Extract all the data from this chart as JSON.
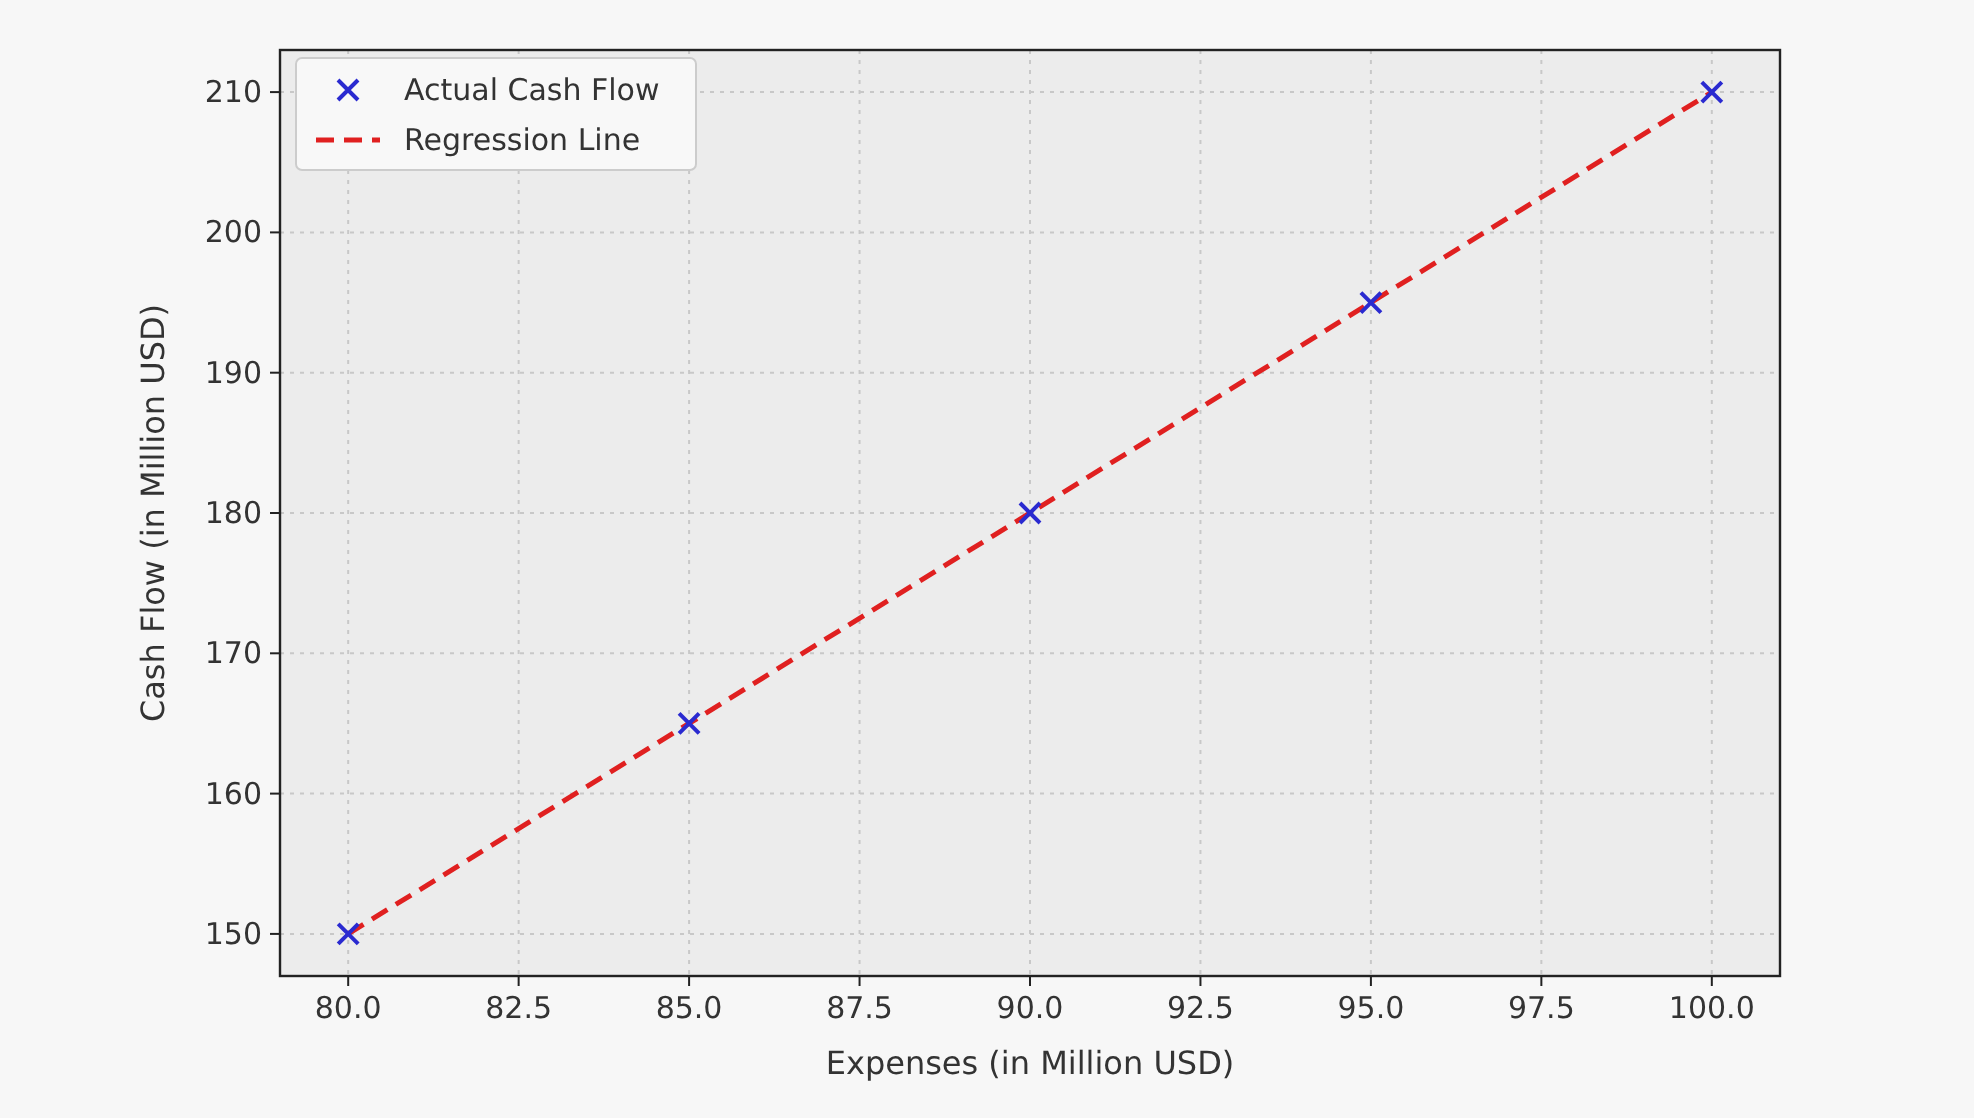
{
  "chart_data": {
    "type": "scatter",
    "xlabel": "Expenses (in Million USD)",
    "ylabel": "Cash Flow (in Million USD)",
    "x": [
      80,
      85,
      90,
      95,
      100
    ],
    "series": [
      {
        "name": "Actual Cash Flow",
        "color": "#2a2ad0",
        "marker": "cross",
        "values": [
          150,
          165,
          180,
          195,
          210
        ]
      },
      {
        "name": "Regression Line",
        "type": "line",
        "color": "#e02020",
        "line_style": "dashed",
        "marker": "none",
        "values": [
          150,
          165,
          180,
          195,
          210
        ]
      }
    ],
    "xlim": [
      79,
      101
    ],
    "xticks": [
      {
        "value": 80,
        "label": "80.0"
      },
      {
        "value": 82.5,
        "label": "82.5"
      },
      {
        "value": 85,
        "label": "85.0"
      },
      {
        "value": 87.5,
        "label": "87.5"
      },
      {
        "value": 90,
        "label": "90.0"
      },
      {
        "value": 92.5,
        "label": "92.5"
      },
      {
        "value": 95,
        "label": "95.0"
      },
      {
        "value": 97.5,
        "label": "97.5"
      },
      {
        "value": 100,
        "label": "100.0"
      }
    ],
    "ylim": [
      147,
      213
    ],
    "yticks": [
      150,
      160,
      170,
      180,
      190,
      200,
      210
    ],
    "grid": true,
    "legend": "top left"
  }
}
